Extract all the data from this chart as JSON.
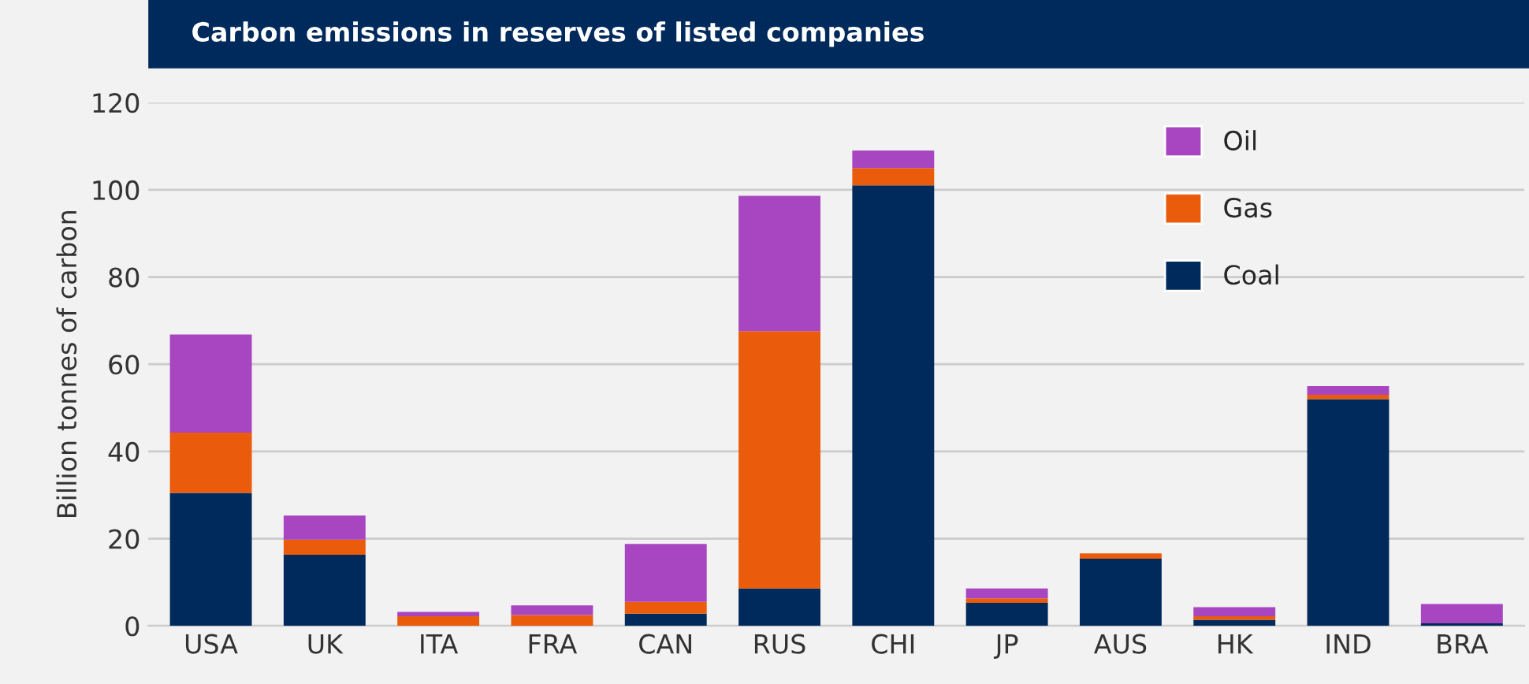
{
  "chart_data": {
    "type": "bar",
    "title": "Carbon emissions in reserves of listed companies",
    "ylabel": "Billion tonnes of carbon",
    "categories": [
      "USA",
      "UK",
      "ITA",
      "FRA",
      "CAN",
      "RUS",
      "CHI",
      "JP",
      "AUS",
      "HK",
      "IND",
      "BRA"
    ],
    "stacked": true,
    "series": [
      {
        "name": "Coal",
        "color": "#002a5c",
        "values": [
          30.5,
          16.3,
          0,
          0,
          2.8,
          8.6,
          101,
          5.3,
          15.4,
          1.4,
          52,
          0.6
        ]
      },
      {
        "name": "Gas",
        "color": "#ea5b0c",
        "values": [
          13.8,
          3.5,
          2.2,
          2.5,
          2.7,
          59,
          4,
          1,
          1.2,
          0.8,
          1,
          0
        ]
      },
      {
        "name": "Oil",
        "color": "#a845c0",
        "values": [
          22.5,
          5.5,
          1,
          2.2,
          13.3,
          31,
          4,
          2.3,
          0,
          2.1,
          2,
          4.4
        ]
      }
    ],
    "ylim": [
      0,
      120
    ],
    "yticks": [
      0,
      20,
      40,
      60,
      80,
      100,
      120
    ],
    "grid": "y",
    "legend": "top right"
  }
}
